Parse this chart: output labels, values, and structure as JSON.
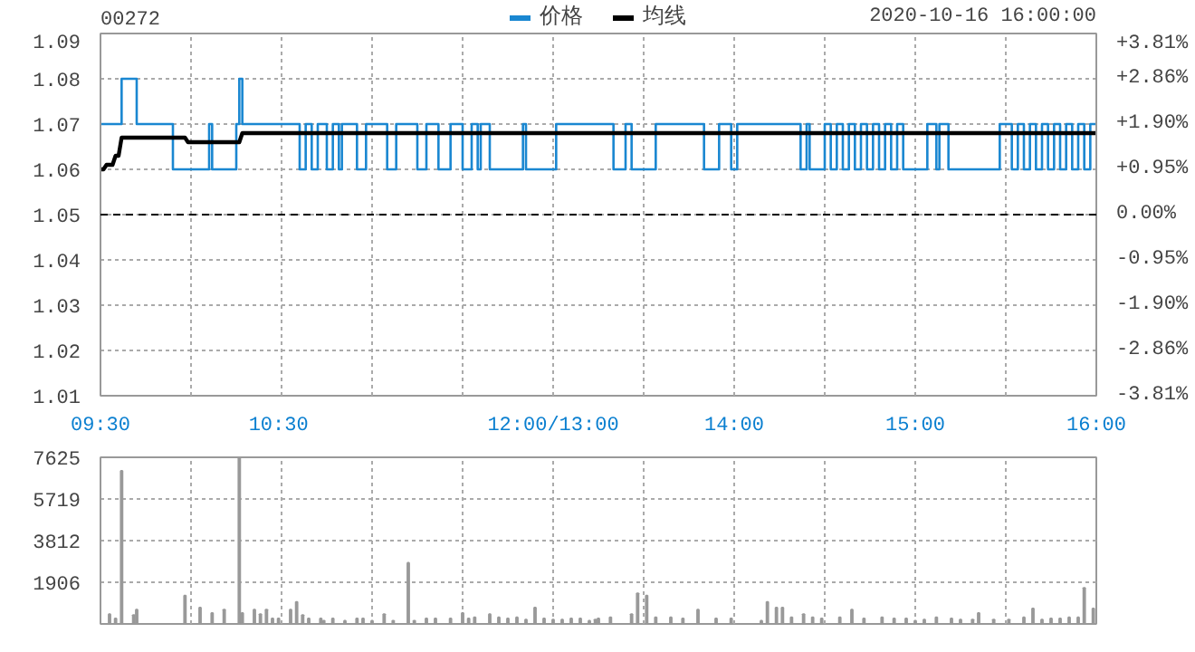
{
  "chart_data": [
    {
      "type": "step",
      "title": "00272",
      "annotations": [
        "2020-10-16 16:00:00"
      ],
      "legend": "top",
      "grid": true,
      "categories": [
        "09:30",
        null,
        null,
        null,
        null,
        null,
        null,
        null,
        null,
        null,
        null,
        null,
        null,
        null,
        null,
        null,
        null,
        null,
        null,
        null,
        null,
        null,
        null,
        null,
        null,
        null,
        null,
        null,
        null,
        null,
        null,
        null,
        null,
        null,
        null,
        null,
        null,
        null,
        null,
        null,
        null,
        null,
        null,
        null,
        null,
        null,
        null,
        null,
        null,
        null,
        null,
        null,
        null,
        null,
        null,
        null,
        null,
        null,
        null,
        "10:30",
        null,
        null,
        null,
        null,
        null,
        null,
        null,
        null,
        null,
        null,
        null,
        null,
        null,
        null,
        null,
        null,
        null,
        null,
        null,
        null,
        null,
        null,
        null,
        null,
        null,
        null,
        null,
        null,
        null,
        null,
        null,
        null,
        null,
        null,
        null,
        null,
        null,
        null,
        null,
        null,
        null,
        null,
        null,
        null,
        null,
        null,
        null,
        null,
        null,
        null,
        null,
        null,
        null,
        null,
        null,
        null,
        null,
        null,
        null,
        null,
        null,
        null,
        null,
        null,
        null,
        null,
        null,
        null,
        null,
        null,
        null,
        null,
        null,
        null,
        null,
        null,
        null,
        null,
        null,
        null,
        null,
        null,
        null,
        null,
        null,
        null,
        null,
        null,
        null,
        null,
        "12:00/13:00",
        null,
        null,
        null,
        null,
        null,
        null,
        null,
        null,
        null,
        null,
        null,
        null,
        null,
        null,
        null,
        null,
        null,
        null,
        null,
        null,
        null,
        null,
        null,
        null,
        null,
        null,
        null,
        null,
        null,
        null,
        null,
        null,
        null,
        null,
        null,
        null,
        null,
        null,
        null,
        null,
        null,
        null,
        null,
        null,
        null,
        null,
        null,
        null,
        null,
        null,
        null,
        null,
        null,
        null,
        null,
        null,
        null,
        null,
        null,
        "14:00",
        null,
        null,
        null,
        null,
        null,
        null,
        null,
        null,
        null,
        null,
        null,
        null,
        null,
        null,
        null,
        null,
        null,
        null,
        null,
        null,
        null,
        null,
        null,
        null,
        null,
        null,
        null,
        null,
        null,
        null,
        null,
        null,
        null,
        null,
        null,
        null,
        null,
        null,
        null,
        null,
        null,
        null,
        null,
        null,
        null,
        null,
        null,
        null,
        null,
        null,
        null,
        null,
        null,
        null,
        null,
        null,
        null,
        null,
        null,
        "15:00",
        null,
        null,
        null,
        null,
        null,
        null,
        null,
        null,
        null,
        null,
        null,
        null,
        null,
        null,
        null,
        null,
        null,
        null,
        null,
        null,
        null,
        null,
        null,
        null,
        null,
        null,
        null,
        null,
        null,
        null,
        null,
        null,
        null,
        null,
        null,
        null,
        null,
        null,
        null,
        null,
        null,
        null,
        null,
        null,
        null,
        null,
        null,
        null,
        null,
        null,
        null,
        null,
        null,
        null,
        null,
        null,
        null,
        null,
        null,
        "16:00"
      ],
      "ylim": [
        1.01,
        1.09
      ],
      "yticks": [
        1.01,
        1.02,
        1.03,
        1.04,
        1.05,
        1.06,
        1.07,
        1.08,
        1.09
      ],
      "y2lim": [
        -3.81,
        3.81
      ],
      "y2ticks": [
        {
          "value": -3.81,
          "label": "-3.81%"
        },
        {
          "value": -2.86,
          "label": "-2.86%"
        },
        {
          "value": -1.9,
          "label": "-1.90%"
        },
        {
          "value": -0.95,
          "label": "-0.95%"
        },
        {
          "value": 0,
          "label": "0.00%"
        },
        {
          "value": 0.95,
          "label": "+0.95%"
        },
        {
          "value": 1.9,
          "label": "+1.90%"
        },
        {
          "value": 2.86,
          "label": "+2.86%"
        },
        {
          "value": 3.81,
          "label": "+3.81%"
        }
      ],
      "ref_lines": [
        {
          "axis": "y",
          "value": 1.05,
          "label": null,
          "color": "#000000",
          "line_style": "dashed"
        }
      ],
      "series": [
        {
          "name": "价格",
          "type": "step",
          "color": "#1a87d1",
          "values": [
            1.07,
            1.07,
            1.07,
            1.07,
            1.07,
            1.07,
            1.07,
            1.08,
            1.08,
            1.08,
            1.08,
            1.08,
            1.07,
            1.07,
            1.07,
            1.07,
            1.07,
            1.07,
            1.07,
            1.07,
            1.07,
            1.07,
            1.07,
            1.07,
            1.06,
            1.06,
            1.06,
            1.06,
            1.06,
            1.06,
            1.06,
            1.06,
            1.06,
            1.06,
            1.06,
            1.06,
            1.07,
            1.06,
            1.06,
            1.06,
            1.06,
            1.06,
            1.06,
            1.06,
            1.06,
            1.07,
            1.08,
            1.07,
            1.07,
            1.07,
            1.07,
            1.07,
            1.07,
            1.07,
            1.07,
            1.07,
            1.07,
            1.07,
            1.07,
            1.07,
            1.07,
            1.07,
            1.07,
            1.07,
            1.07,
            1.07,
            1.06,
            1.06,
            1.07,
            1.07,
            1.06,
            1.06,
            1.07,
            1.07,
            1.07,
            1.06,
            1.06,
            1.07,
            1.07,
            1.06,
            1.07,
            1.07,
            1.07,
            1.07,
            1.07,
            1.06,
            1.06,
            1.06,
            1.07,
            1.07,
            1.07,
            1.07,
            1.07,
            1.07,
            1.07,
            1.06,
            1.06,
            1.06,
            1.07,
            1.07,
            1.07,
            1.07,
            1.07,
            1.07,
            1.07,
            1.06,
            1.06,
            1.06,
            1.07,
            1.07,
            1.07,
            1.07,
            1.06,
            1.06,
            1.06,
            1.06,
            1.07,
            1.07,
            1.07,
            1.07,
            1.06,
            1.06,
            1.06,
            1.07,
            1.07,
            1.06,
            1.07,
            1.07,
            1.07,
            1.06,
            1.06,
            1.06,
            1.06,
            1.06,
            1.06,
            1.06,
            1.06,
            1.06,
            1.06,
            1.06,
            1.07,
            1.06,
            1.06,
            1.06,
            1.06,
            1.06,
            1.06,
            1.06,
            1.06,
            1.06,
            1.06,
            1.07,
            1.07,
            1.07,
            1.07,
            1.07,
            1.07,
            1.07,
            1.07,
            1.07,
            1.07,
            1.07,
            1.07,
            1.07,
            1.07,
            1.07,
            1.07,
            1.07,
            1.07,
            1.07,
            1.06,
            1.06,
            1.06,
            1.06,
            1.07,
            1.07,
            1.06,
            1.06,
            1.06,
            1.06,
            1.06,
            1.06,
            1.06,
            1.06,
            1.07,
            1.07,
            1.07,
            1.07,
            1.07,
            1.07,
            1.07,
            1.07,
            1.07,
            1.07,
            1.07,
            1.07,
            1.07,
            1.07,
            1.07,
            1.07,
            1.06,
            1.06,
            1.06,
            1.06,
            1.06,
            1.07,
            1.07,
            1.07,
            1.07,
            1.06,
            1.06,
            1.07,
            1.07,
            1.07,
            1.07,
            1.07,
            1.07,
            1.07,
            1.07,
            1.07,
            1.07,
            1.07,
            1.07,
            1.07,
            1.07,
            1.07,
            1.07,
            1.07,
            1.07,
            1.07,
            1.07,
            1.07,
            1.06,
            1.06,
            1.07,
            1.06,
            1.06,
            1.06,
            1.06,
            1.06,
            1.07,
            1.07,
            1.06,
            1.06,
            1.07,
            1.07,
            1.06,
            1.06,
            1.07,
            1.07,
            1.06,
            1.06,
            1.07,
            1.07,
            1.06,
            1.06,
            1.07,
            1.07,
            1.06,
            1.06,
            1.07,
            1.07,
            1.06,
            1.06,
            1.07,
            1.07,
            1.06,
            1.06,
            1.06,
            1.06,
            1.06,
            1.06,
            1.06,
            1.06,
            1.07,
            1.07,
            1.07,
            1.06,
            1.07,
            1.07,
            1.07,
            1.06,
            1.06,
            1.06,
            1.06,
            1.06,
            1.06,
            1.06,
            1.06,
            1.06,
            1.06,
            1.06,
            1.06,
            1.06,
            1.06,
            1.06,
            1.06,
            1.06,
            1.07,
            1.07,
            1.07,
            1.07,
            1.06,
            1.06,
            1.07,
            1.07,
            1.06,
            1.06,
            1.07,
            1.07,
            1.06,
            1.06,
            1.07,
            1.07,
            1.06,
            1.06,
            1.07,
            1.07,
            1.06,
            1.06,
            1.07,
            1.07,
            1.06,
            1.06,
            1.07,
            1.07,
            1.06,
            1.06,
            1.07,
            1.07,
            1.07
          ]
        },
        {
          "name": "均线",
          "type": "line",
          "color": "#000000",
          "values": [
            1.06,
            1.06,
            1.061,
            1.061,
            1.061,
            1.063,
            1.063,
            1.067,
            1.067,
            1.067,
            1.067,
            1.067,
            1.067,
            1.067,
            1.067,
            1.067,
            1.067,
            1.067,
            1.067,
            1.067,
            1.067,
            1.067,
            1.067,
            1.067,
            1.067,
            1.067,
            1.067,
            1.067,
            1.067,
            1.066,
            1.066,
            1.066,
            1.066,
            1.066,
            1.066,
            1.066,
            1.066,
            1.066,
            1.066,
            1.066,
            1.066,
            1.066,
            1.066,
            1.066,
            1.066,
            1.066,
            1.066,
            1.068,
            1.068,
            1.068,
            1.068,
            1.068,
            1.068,
            1.068,
            1.068,
            1.068,
            1.068,
            1.068,
            1.068,
            1.068,
            1.068,
            1.068,
            1.068,
            1.068,
            1.068,
            1.068,
            1.068,
            1.068,
            1.068,
            1.068,
            1.068,
            1.068,
            1.068,
            1.068,
            1.068,
            1.068,
            1.068,
            1.068,
            1.068,
            1.068,
            1.068,
            1.068,
            1.068,
            1.068,
            1.068,
            1.068,
            1.068,
            1.068,
            1.068,
            1.068,
            1.068,
            1.068,
            1.068,
            1.068,
            1.068,
            1.068,
            1.068,
            1.068,
            1.068,
            1.068,
            1.068,
            1.068,
            1.068,
            1.068,
            1.068,
            1.068,
            1.068,
            1.068,
            1.068,
            1.068,
            1.068,
            1.068,
            1.068,
            1.068,
            1.068,
            1.068,
            1.068,
            1.068,
            1.068,
            1.068,
            1.068,
            1.068,
            1.068,
            1.068,
            1.068,
            1.068,
            1.068,
            1.068,
            1.068,
            1.068,
            1.068,
            1.068,
            1.068,
            1.068,
            1.068,
            1.068,
            1.068,
            1.068,
            1.068,
            1.068,
            1.068,
            1.068,
            1.068,
            1.068,
            1.068,
            1.068,
            1.068,
            1.068,
            1.068,
            1.068,
            1.068,
            1.068,
            1.068,
            1.068,
            1.068,
            1.068,
            1.068,
            1.068,
            1.068,
            1.068,
            1.068,
            1.068,
            1.068,
            1.068,
            1.068,
            1.068,
            1.068,
            1.068,
            1.068,
            1.068,
            1.068,
            1.068,
            1.068,
            1.068,
            1.068,
            1.068,
            1.068,
            1.068,
            1.068,
            1.068,
            1.068,
            1.068,
            1.068,
            1.068,
            1.068,
            1.068,
            1.068,
            1.068,
            1.068,
            1.068,
            1.068,
            1.068,
            1.068,
            1.068,
            1.068,
            1.068,
            1.068,
            1.068,
            1.068,
            1.068,
            1.068,
            1.068,
            1.068,
            1.068,
            1.068,
            1.068,
            1.068,
            1.068,
            1.068,
            1.068,
            1.068,
            1.068,
            1.068,
            1.068,
            1.068,
            1.068,
            1.068,
            1.068,
            1.068,
            1.068,
            1.068,
            1.068,
            1.068,
            1.068,
            1.068,
            1.068,
            1.068,
            1.068,
            1.068,
            1.068,
            1.068,
            1.068,
            1.068,
            1.068,
            1.068,
            1.068,
            1.068,
            1.068,
            1.068,
            1.068,
            1.068,
            1.068,
            1.068,
            1.068,
            1.068,
            1.068,
            1.068,
            1.068,
            1.068,
            1.068,
            1.068,
            1.068,
            1.068,
            1.068,
            1.068,
            1.068,
            1.068,
            1.068,
            1.068,
            1.068,
            1.068,
            1.068,
            1.068,
            1.068,
            1.068,
            1.068,
            1.068,
            1.068,
            1.068,
            1.068,
            1.068,
            1.068,
            1.068,
            1.068,
            1.068,
            1.068,
            1.068,
            1.068,
            1.068,
            1.068,
            1.068,
            1.068,
            1.068,
            1.068,
            1.068,
            1.068,
            1.068,
            1.068,
            1.068,
            1.068,
            1.068,
            1.068,
            1.068,
            1.068,
            1.068,
            1.068,
            1.068,
            1.068,
            1.068,
            1.068,
            1.068,
            1.068,
            1.068,
            1.068,
            1.068,
            1.068,
            1.068,
            1.068,
            1.068,
            1.068,
            1.068,
            1.068,
            1.068,
            1.068,
            1.068,
            1.068,
            1.068,
            1.068,
            1.068,
            1.068,
            1.068,
            1.068,
            1.068,
            1.068,
            1.068,
            1.068,
            1.068,
            1.068,
            1.068,
            1.068,
            1.068
          ]
        }
      ]
    },
    {
      "type": "bar",
      "tick_labels": "y",
      "grid": true,
      "categories": [
        null,
        null,
        null,
        null,
        null,
        null,
        null,
        null,
        null,
        null,
        null,
        null,
        null,
        null,
        null,
        null,
        null,
        null,
        null,
        null,
        null,
        null,
        null,
        null,
        null,
        null,
        null,
        null,
        null,
        null,
        null,
        null,
        null,
        null,
        null,
        null,
        null,
        null,
        null,
        null,
        null,
        null,
        null,
        null,
        null,
        null,
        null,
        null,
        null,
        null,
        null,
        null,
        null,
        null,
        null,
        null,
        null,
        null,
        null,
        null,
        null,
        null,
        null,
        null,
        null,
        null,
        null,
        null,
        null,
        null,
        null,
        null,
        null,
        null,
        null,
        null,
        null,
        null,
        null,
        null,
        null,
        null,
        null,
        null,
        null,
        null,
        null,
        null,
        null,
        null,
        null,
        null,
        null,
        null,
        null,
        null,
        null,
        null,
        null,
        null,
        null,
        null,
        null,
        null,
        null,
        null,
        null,
        null,
        null,
        null,
        null,
        null,
        null,
        null,
        null,
        null,
        null,
        null,
        null,
        null,
        null,
        null,
        null,
        null,
        null,
        null,
        null,
        null,
        null,
        null,
        null,
        null,
        null,
        null,
        null,
        null,
        null,
        null,
        null,
        null,
        null,
        null,
        null,
        null,
        null,
        null,
        null,
        null,
        null,
        null,
        null,
        null,
        null,
        null,
        null,
        null,
        null,
        null,
        null,
        null,
        null,
        null,
        null,
        null,
        null,
        null,
        null,
        null,
        null,
        null,
        null,
        null,
        null,
        null,
        null,
        null,
        null,
        null,
        null,
        null,
        null,
        null,
        null,
        null,
        null,
        null,
        null,
        null,
        null,
        null,
        null,
        null,
        null,
        null,
        null,
        null,
        null,
        null,
        null,
        null,
        null,
        null,
        null,
        null,
        null,
        null,
        null,
        null,
        null,
        null,
        null,
        null,
        null,
        null,
        null,
        null,
        null,
        null,
        null,
        null,
        null,
        null,
        null,
        null,
        null,
        null,
        null,
        null,
        null,
        null,
        null,
        null,
        null,
        null,
        null,
        null,
        null,
        null,
        null,
        null,
        null,
        null,
        null,
        null,
        null,
        null,
        null,
        null,
        null,
        null,
        null,
        null,
        null,
        null,
        null,
        null,
        null,
        null,
        null,
        null,
        null,
        null,
        null,
        null,
        null,
        null,
        null,
        null,
        null,
        null,
        null,
        null,
        null,
        null,
        null,
        null,
        null,
        null,
        null,
        null,
        null,
        null,
        null,
        null,
        null,
        null,
        null,
        null,
        null,
        null,
        null,
        null,
        null,
        null,
        null,
        null,
        null,
        null,
        null,
        null,
        null,
        null,
        null,
        null,
        null,
        null,
        null,
        null,
        null,
        null,
        null,
        null,
        null,
        null,
        null,
        null,
        null,
        null,
        null,
        null,
        null,
        null,
        null,
        null,
        null,
        null,
        null,
        null,
        null,
        null,
        null
      ],
      "ylim": [
        0,
        7625
      ],
      "yticks": [
        1906,
        3812,
        5719,
        7625
      ],
      "series": [
        {
          "color": "#999999",
          "values": [
            null,
            null,
            null,
            450,
            null,
            250,
            null,
            7000,
            null,
            null,
            null,
            400,
            650,
            null,
            null,
            null,
            null,
            null,
            null,
            null,
            null,
            null,
            null,
            null,
            null,
            null,
            null,
            null,
            1300,
            null,
            null,
            null,
            null,
            750,
            null,
            null,
            null,
            500,
            null,
            null,
            null,
            650,
            null,
            null,
            null,
            null,
            7625,
            500,
            null,
            null,
            null,
            650,
            null,
            450,
            null,
            650,
            null,
            250,
            null,
            250,
            null,
            null,
            null,
            650,
            null,
            1000,
            null,
            400,
            null,
            250,
            null,
            null,
            null,
            250,
            150,
            null,
            null,
            250,
            null,
            null,
            null,
            150,
            null,
            null,
            null,
            250,
            null,
            250,
            null,
            null,
            150,
            null,
            null,
            null,
            450,
            null,
            null,
            150,
            null,
            null,
            null,
            null,
            2800,
            null,
            150,
            null,
            null,
            null,
            250,
            null,
            null,
            250,
            null,
            null,
            null,
            null,
            250,
            null,
            null,
            null,
            500,
            null,
            250,
            null,
            300,
            null,
            null,
            null,
            null,
            450,
            null,
            null,
            300,
            null,
            null,
            250,
            null,
            null,
            300,
            null,
            null,
            200,
            null,
            null,
            750,
            null,
            null,
            250,
            null,
            null,
            200,
            null,
            null,
            200,
            null,
            null,
            250,
            null,
            null,
            250,
            null,
            null,
            150,
            null,
            200,
            250,
            null,
            null,
            null,
            300,
            null,
            null,
            null,
            null,
            null,
            null,
            450,
            null,
            1400,
            null,
            null,
            1300,
            null,
            null,
            300,
            null,
            null,
            null,
            null,
            300,
            null,
            null,
            null,
            250,
            null,
            null,
            null,
            null,
            650,
            null,
            null,
            null,
            null,
            null,
            250,
            null,
            null,
            null,
            null,
            250,
            null,
            null,
            null,
            null,
            null,
            null,
            null,
            null,
            null,
            150,
            null,
            1000,
            null,
            null,
            750,
            null,
            750,
            null,
            null,
            300,
            null,
            null,
            null,
            450,
            null,
            null,
            300,
            null,
            null,
            250,
            null,
            null,
            null,
            null,
            null,
            300,
            null,
            null,
            null,
            650,
            null,
            null,
            null,
            250,
            null,
            null,
            null,
            null,
            null,
            300,
            null,
            null,
            null,
            250,
            null,
            null,
            null,
            250,
            null,
            null,
            150,
            null,
            null,
            200,
            null,
            null,
            null,
            300,
            null,
            null,
            null,
            null,
            250,
            null,
            null,
            200,
            null,
            null,
            null,
            200,
            null,
            500,
            null,
            null,
            null,
            null,
            200,
            null,
            null,
            null,
            null,
            200,
            null,
            null,
            null,
            null,
            300,
            null,
            null,
            700,
            null,
            null,
            200,
            null,
            null,
            250,
            null,
            null,
            250,
            null,
            null,
            300,
            null,
            null,
            300,
            null,
            1650,
            null,
            null,
            700,
            null
          ]
        }
      ]
    }
  ]
}
